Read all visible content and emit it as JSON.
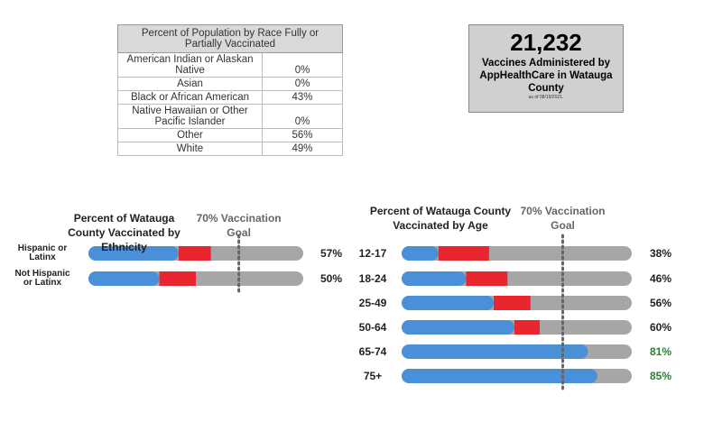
{
  "table": {
    "title": "Percent of Population by Race Fully or Partially Vaccinated",
    "rows": [
      [
        "American Indian or Alaskan Native",
        "0%"
      ],
      [
        "Asian",
        "0%"
      ],
      [
        "Black or African American",
        "43%"
      ],
      [
        "Native Hawaiian or Other Pacific Islander",
        "0%"
      ],
      [
        "Other",
        "56%"
      ],
      [
        "White",
        "49%"
      ]
    ]
  },
  "stat": {
    "value": "21,232",
    "label": "Vaccines Administered by AppHealthCare in Watauga County",
    "note": "as of 08/19/2021."
  },
  "chart_data": [
    {
      "type": "stacked_bar_h",
      "title": "Percent of Watauga County Vaccinated by Ethnicity",
      "categories": [
        "Hispanic or Latinx",
        "Not Hispanic or Latinx"
      ],
      "series": [
        {
          "color": "#4a90d9",
          "values": [
            42,
            33
          ]
        },
        {
          "color": "#e8262f",
          "values": [
            15,
            17
          ]
        }
      ],
      "totals": [
        57,
        50
      ],
      "total_labels": [
        "57%",
        "50%"
      ],
      "rest_color": "#a6a6a6",
      "xlim": [
        0,
        100
      ],
      "goal": 70,
      "goal_label": "70% Vaccination Goal",
      "highlight_color": "#2e7d32"
    },
    {
      "type": "stacked_bar_h",
      "title": "Percent of Watauga County Vaccinated by Age",
      "categories": [
        "12-17",
        "18-24",
        "25-49",
        "50-64",
        "65-74",
        "75+"
      ],
      "series": [
        {
          "color": "#4a90d9",
          "values": [
            16,
            28,
            40,
            49,
            81,
            85
          ]
        },
        {
          "color": "#e8262f",
          "values": [
            22,
            18,
            16,
            11,
            0,
            0
          ]
        }
      ],
      "totals": [
        38,
        46,
        56,
        60,
        81,
        85
      ],
      "total_labels": [
        "38%",
        "46%",
        "56%",
        "60%",
        "81%",
        "85%"
      ],
      "rest_color": "#a6a6a6",
      "xlim": [
        0,
        100
      ],
      "goal": 70,
      "goal_label": "70% Vaccination Goal",
      "highlight_color": "#2e7d32"
    }
  ]
}
